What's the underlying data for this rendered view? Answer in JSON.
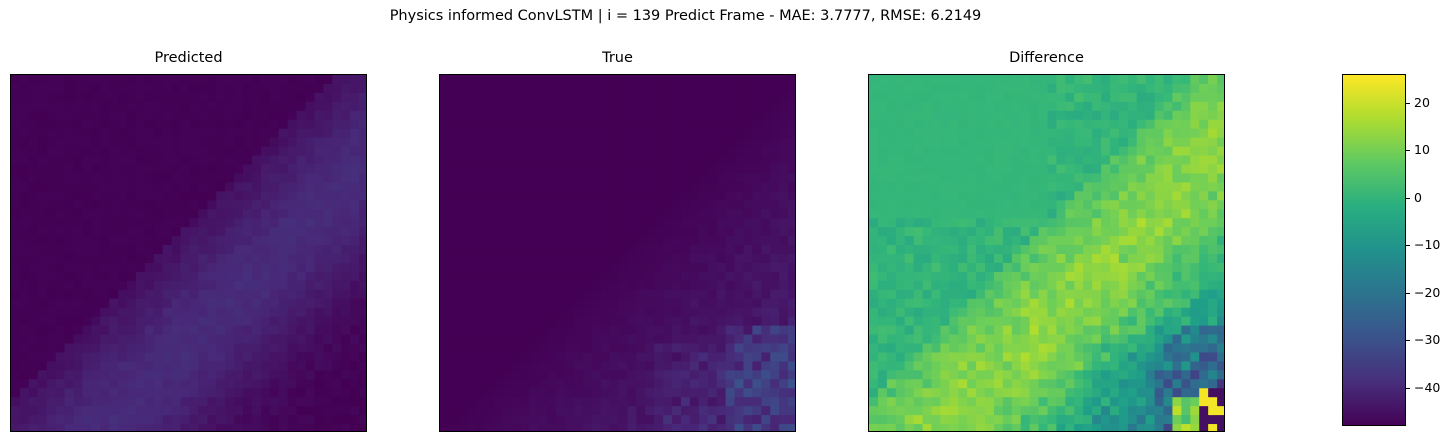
{
  "figure": {
    "suptitle": "Physics informed ConvLSTM | i = 139 Predict Frame - MAE: 3.7777, RMSE: 6.2149"
  },
  "chart_data": [
    {
      "type": "heatmap",
      "title": "Predicted",
      "grid_size": [
        40,
        40
      ],
      "colormap": "viridis",
      "value_range": [
        -48,
        26
      ],
      "axes_ticks": "off",
      "description_values": "values mostly near -48 (dark purple), diagonal band of slightly higher values (~-40) from bottom-left to top-right"
    },
    {
      "type": "heatmap",
      "title": "True",
      "grid_size": [
        40,
        40
      ],
      "colormap": "viridis",
      "value_range": [
        -48,
        26
      ],
      "axes_ticks": "off"
    },
    {
      "type": "heatmap",
      "title": "Difference",
      "grid_size": [
        40,
        40
      ],
      "colormap": "viridis",
      "value_range": [
        -48,
        26
      ],
      "axes_ticks": "off"
    },
    {
      "type": "colorbar",
      "colormap": "viridis",
      "range": [
        -48,
        26
      ],
      "ticks": [
        20,
        10,
        0,
        -10,
        -20,
        -30,
        -40
      ],
      "tick_labels": [
        "20",
        "10",
        "0",
        "−10",
        "−20",
        "−30",
        "−40"
      ]
    }
  ]
}
